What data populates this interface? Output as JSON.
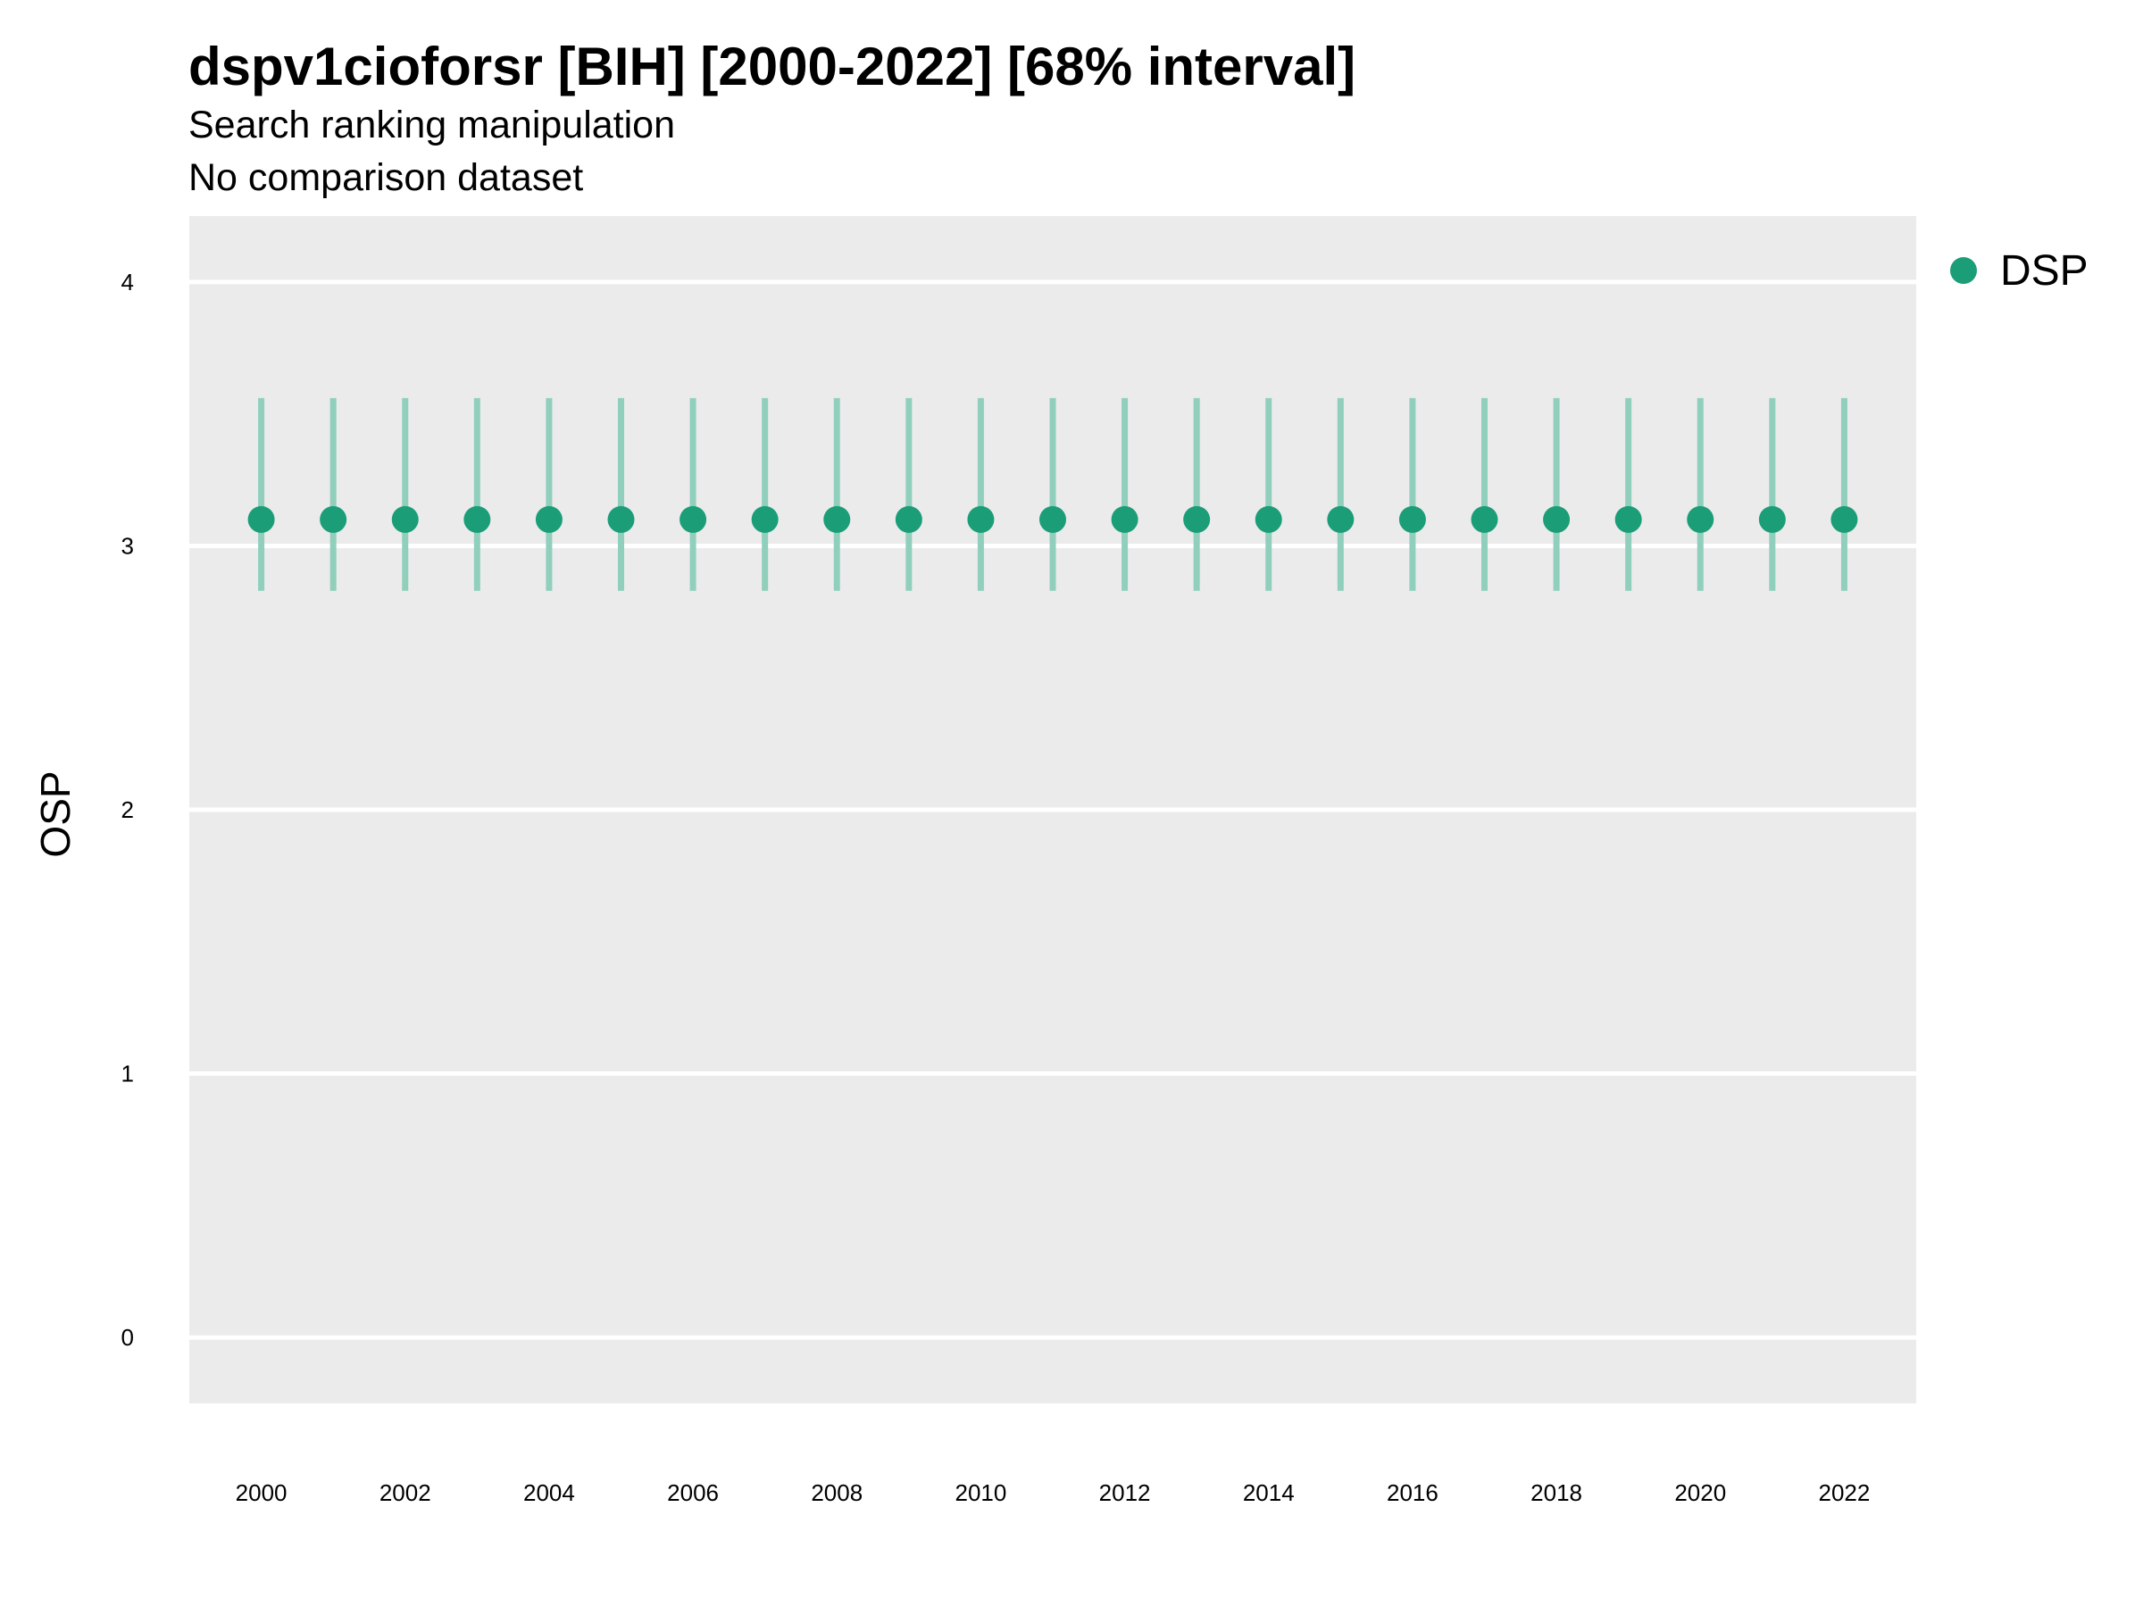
{
  "chart_data": {
    "type": "scatter",
    "title": "dspv1cioforsr [BIH] [2000-2022] [68% interval]",
    "subtitle": "Search ranking manipulation",
    "caption": "No comparison dataset",
    "xlabel": "",
    "ylabel": "OSP",
    "xlim": [
      1999,
      2023
    ],
    "ylim": [
      -0.25,
      4.25
    ],
    "x_ticks": [
      2000,
      2002,
      2004,
      2006,
      2008,
      2010,
      2012,
      2014,
      2016,
      2018,
      2020,
      2022
    ],
    "y_ticks": [
      0,
      1,
      2,
      3,
      4
    ],
    "grid": "major gridlines on y",
    "legend_position": "right",
    "series": [
      {
        "name": "DSP",
        "color": "#1b9e77",
        "x": [
          2000,
          2001,
          2002,
          2003,
          2004,
          2005,
          2006,
          2007,
          2008,
          2009,
          2010,
          2011,
          2012,
          2013,
          2014,
          2015,
          2016,
          2017,
          2018,
          2019,
          2020,
          2021,
          2022
        ],
        "y": [
          3.1,
          3.1,
          3.1,
          3.1,
          3.1,
          3.1,
          3.1,
          3.1,
          3.1,
          3.1,
          3.1,
          3.1,
          3.1,
          3.1,
          3.1,
          3.1,
          3.1,
          3.1,
          3.1,
          3.1,
          3.1,
          3.1,
          3.1
        ],
        "lower": [
          2.83,
          2.83,
          2.83,
          2.83,
          2.83,
          2.83,
          2.83,
          2.83,
          2.83,
          2.83,
          2.83,
          2.83,
          2.83,
          2.83,
          2.83,
          2.83,
          2.83,
          2.83,
          2.83,
          2.83,
          2.83,
          2.83,
          2.83
        ],
        "upper": [
          3.56,
          3.56,
          3.56,
          3.56,
          3.56,
          3.56,
          3.56,
          3.56,
          3.56,
          3.56,
          3.56,
          3.56,
          3.56,
          3.56,
          3.56,
          3.56,
          3.56,
          3.56,
          3.56,
          3.56,
          3.56,
          3.56,
          3.56
        ]
      }
    ]
  },
  "colors": {
    "panel_background": "#ebebeb",
    "gridline": "#ffffff",
    "series_point": "#1b9e77",
    "interval": "#8fcfbb"
  }
}
